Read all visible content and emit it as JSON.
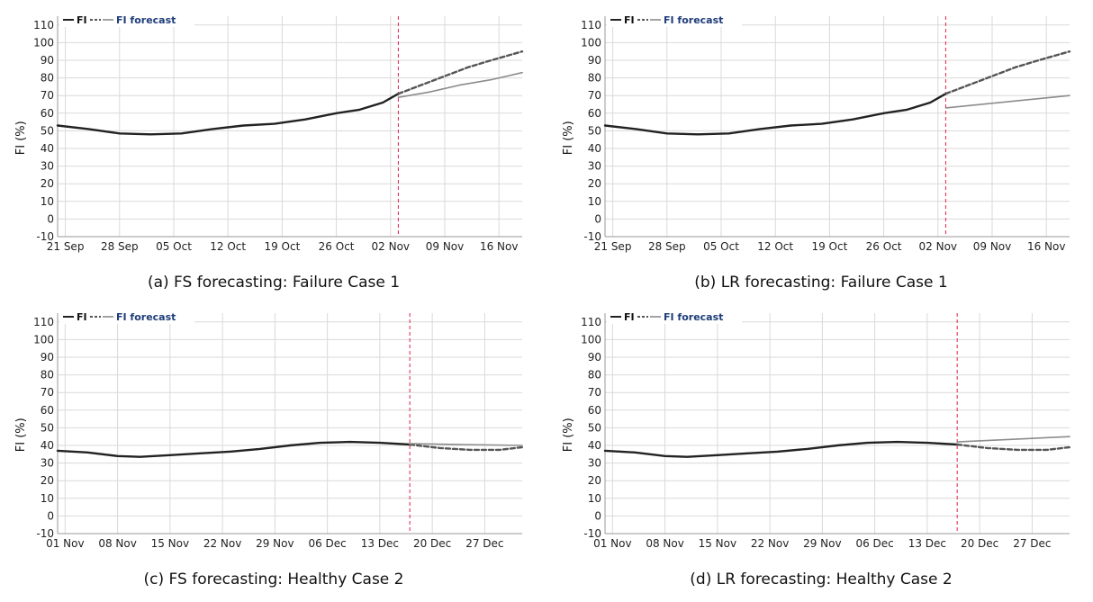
{
  "colors": {
    "observed": "#222222",
    "dashed": "#555555",
    "forecast": "#8c8c8c",
    "divider": "#e0214a",
    "grid": "#d9d9d9",
    "legend_text": "#1f3d7a"
  },
  "panels": [
    {
      "caption": "(a) FS forecasting: Failure Case 1"
    },
    {
      "caption": "(b) LR forecasting: Failure Case 1"
    },
    {
      "caption": "(c) FS forecasting: Healthy Case 2"
    },
    {
      "caption": "(d) LR forecasting: Healthy Case 2"
    }
  ],
  "chart_data": [
    {
      "type": "line",
      "ylabel": "FI (%)",
      "ylim": [
        -10,
        115
      ],
      "yticks": [
        -10,
        0,
        10,
        20,
        30,
        40,
        50,
        60,
        70,
        80,
        90,
        100,
        110
      ],
      "xlim": [
        "2019-09-20",
        "2019-11-19"
      ],
      "xticks": [
        "21 Sep",
        "28 Sep",
        "05 Oct",
        "12 Oct",
        "19 Oct",
        "26 Oct",
        "02 Nov",
        "09 Nov",
        "16 Nov"
      ],
      "xtick_dates": [
        "2019-09-21",
        "2019-09-28",
        "2019-10-05",
        "2019-10-12",
        "2019-10-19",
        "2019-10-26",
        "2019-11-02",
        "2019-11-09",
        "2019-11-16"
      ],
      "forecast_start": "2019-11-03",
      "grid": true,
      "legend": {
        "placement": "top-left",
        "items": [
          "FI",
          "FI forecast"
        ]
      },
      "series": [
        {
          "name": "FI",
          "style": "solid",
          "x": [
            "2019-09-20",
            "2019-09-24",
            "2019-09-28",
            "2019-10-02",
            "2019-10-06",
            "2019-10-10",
            "2019-10-14",
            "2019-10-18",
            "2019-10-22",
            "2019-10-26",
            "2019-10-29",
            "2019-11-01",
            "2019-11-03"
          ],
          "y": [
            53,
            51,
            48.5,
            48,
            48.5,
            51,
            53,
            54,
            56.5,
            60,
            62,
            66,
            71
          ]
        },
        {
          "name": "FI",
          "style": "dashed",
          "x": [
            "2019-11-03",
            "2019-11-06",
            "2019-11-09",
            "2019-11-12",
            "2019-11-15",
            "2019-11-19"
          ],
          "y": [
            71,
            76,
            81,
            86,
            90,
            95
          ]
        },
        {
          "name": "FI forecast",
          "style": "solid",
          "x": [
            "2019-11-03",
            "2019-11-07",
            "2019-11-11",
            "2019-11-15",
            "2019-11-19"
          ],
          "y": [
            69,
            72,
            76,
            79,
            83
          ]
        }
      ]
    },
    {
      "type": "line",
      "ylabel": "FI (%)",
      "ylim": [
        -10,
        115
      ],
      "yticks": [
        -10,
        0,
        10,
        20,
        30,
        40,
        50,
        60,
        70,
        80,
        90,
        100,
        110
      ],
      "xlim": [
        "2019-09-20",
        "2019-11-19"
      ],
      "xticks": [
        "21 Sep",
        "28 Sep",
        "05 Oct",
        "12 Oct",
        "19 Oct",
        "26 Oct",
        "02 Nov",
        "09 Nov",
        "16 Nov"
      ],
      "xtick_dates": [
        "2019-09-21",
        "2019-09-28",
        "2019-10-05",
        "2019-10-12",
        "2019-10-19",
        "2019-10-26",
        "2019-11-02",
        "2019-11-09",
        "2019-11-16"
      ],
      "forecast_start": "2019-11-03",
      "grid": true,
      "legend": {
        "placement": "top-left",
        "items": [
          "FI",
          "FI forecast"
        ]
      },
      "series": [
        {
          "name": "FI",
          "style": "solid",
          "x": [
            "2019-09-20",
            "2019-09-24",
            "2019-09-28",
            "2019-10-02",
            "2019-10-06",
            "2019-10-10",
            "2019-10-14",
            "2019-10-18",
            "2019-10-22",
            "2019-10-26",
            "2019-10-29",
            "2019-11-01",
            "2019-11-03"
          ],
          "y": [
            53,
            51,
            48.5,
            48,
            48.5,
            51,
            53,
            54,
            56.5,
            60,
            62,
            66,
            71
          ]
        },
        {
          "name": "FI",
          "style": "dashed",
          "x": [
            "2019-11-03",
            "2019-11-06",
            "2019-11-09",
            "2019-11-12",
            "2019-11-15",
            "2019-11-19"
          ],
          "y": [
            71,
            76,
            81,
            86,
            90,
            95
          ]
        },
        {
          "name": "FI forecast",
          "style": "solid",
          "x": [
            "2019-11-03",
            "2019-11-19"
          ],
          "y": [
            63,
            70
          ]
        }
      ]
    },
    {
      "type": "line",
      "ylabel": "FI (%)",
      "ylim": [
        -10,
        115
      ],
      "yticks": [
        -10,
        0,
        10,
        20,
        30,
        40,
        50,
        60,
        70,
        80,
        90,
        100,
        110
      ],
      "xlim": [
        "2019-10-31",
        "2020-01-01"
      ],
      "xticks": [
        "01 Nov",
        "08 Nov",
        "15 Nov",
        "22 Nov",
        "29 Nov",
        "06 Dec",
        "13 Dec",
        "20 Dec",
        "27 Dec"
      ],
      "xtick_dates": [
        "2019-11-01",
        "2019-11-08",
        "2019-11-15",
        "2019-11-22",
        "2019-11-29",
        "2019-12-06",
        "2019-12-13",
        "2019-12-20",
        "2019-12-27"
      ],
      "forecast_start": "2019-12-17",
      "grid": true,
      "legend": {
        "placement": "top-left",
        "items": [
          "FI",
          "FI forecast"
        ]
      },
      "series": [
        {
          "name": "FI",
          "style": "solid",
          "x": [
            "2019-10-31",
            "2019-11-04",
            "2019-11-08",
            "2019-11-11",
            "2019-11-15",
            "2019-11-19",
            "2019-11-23",
            "2019-11-27",
            "2019-12-01",
            "2019-12-05",
            "2019-12-09",
            "2019-12-13",
            "2019-12-17"
          ],
          "y": [
            37,
            36,
            34,
            33.5,
            34.5,
            35.5,
            36.5,
            38,
            40,
            41.5,
            42,
            41.5,
            40.5
          ]
        },
        {
          "name": "FI",
          "style": "dashed",
          "x": [
            "2019-12-17",
            "2019-12-21",
            "2019-12-25",
            "2019-12-29",
            "2020-01-01"
          ],
          "y": [
            40.5,
            38.5,
            37.5,
            37.5,
            39
          ]
        },
        {
          "name": "FI forecast",
          "style": "solid",
          "x": [
            "2019-12-17",
            "2019-12-24",
            "2020-01-01"
          ],
          "y": [
            41,
            40.5,
            40
          ]
        }
      ]
    },
    {
      "type": "line",
      "ylabel": "FI (%)",
      "ylim": [
        -10,
        115
      ],
      "yticks": [
        -10,
        0,
        10,
        20,
        30,
        40,
        50,
        60,
        70,
        80,
        90,
        100,
        110
      ],
      "xlim": [
        "2019-10-31",
        "2020-01-01"
      ],
      "xticks": [
        "01 Nov",
        "08 Nov",
        "15 Nov",
        "22 Nov",
        "29 Nov",
        "06 Dec",
        "13 Dec",
        "20 Dec",
        "27 Dec"
      ],
      "xtick_dates": [
        "2019-11-01",
        "2019-11-08",
        "2019-11-15",
        "2019-11-22",
        "2019-11-29",
        "2019-12-06",
        "2019-12-13",
        "2019-12-20",
        "2019-12-27"
      ],
      "forecast_start": "2019-12-17",
      "grid": true,
      "legend": {
        "placement": "top-left",
        "items": [
          "FI",
          "FI forecast"
        ]
      },
      "series": [
        {
          "name": "FI",
          "style": "solid",
          "x": [
            "2019-10-31",
            "2019-11-04",
            "2019-11-08",
            "2019-11-11",
            "2019-11-15",
            "2019-11-19",
            "2019-11-23",
            "2019-11-27",
            "2019-12-01",
            "2019-12-05",
            "2019-12-09",
            "2019-12-13",
            "2019-12-17"
          ],
          "y": [
            37,
            36,
            34,
            33.5,
            34.5,
            35.5,
            36.5,
            38,
            40,
            41.5,
            42,
            41.5,
            40.5
          ]
        },
        {
          "name": "FI",
          "style": "dashed",
          "x": [
            "2019-12-17",
            "2019-12-21",
            "2019-12-25",
            "2019-12-29",
            "2020-01-01"
          ],
          "y": [
            40.5,
            38.5,
            37.5,
            37.5,
            39
          ]
        },
        {
          "name": "FI forecast",
          "style": "solid",
          "x": [
            "2019-12-17",
            "2020-01-01"
          ],
          "y": [
            42,
            45
          ]
        }
      ]
    }
  ]
}
